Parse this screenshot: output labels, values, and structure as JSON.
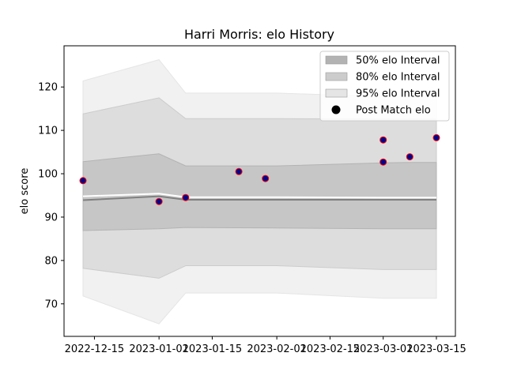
{
  "chart_data": {
    "type": "line",
    "title": "Harri Morris: elo History",
    "xlabel": "",
    "ylabel": "elo score",
    "xlim": [
      "2022-12-07",
      "2023-03-20"
    ],
    "ylim": [
      62.5,
      129.5
    ],
    "x_ticks": [
      "2022-12-15",
      "2023-01-01",
      "2023-01-15",
      "2023-02-01",
      "2023-02-15",
      "2023-03-01",
      "2023-03-15"
    ],
    "x_tick_labels": [
      "2022-12-15",
      "2023-01-01",
      "2023-01-15",
      "2023-02-01",
      "2023-02-15",
      "2023-03-01",
      "2023-03-15"
    ],
    "y_ticks": [
      70,
      80,
      90,
      100,
      110,
      120
    ],
    "y_tick_labels": [
      "70",
      "80",
      "90",
      "100",
      "110",
      "120"
    ],
    "grid": false,
    "legend_position": "top-right",
    "x": [
      "2022-12-12",
      "2023-01-01",
      "2023-01-08",
      "2023-02-01",
      "2023-03-01",
      "2023-03-08",
      "2023-03-15"
    ],
    "series": [
      {
        "name": "50% elo Interval",
        "kind": "band",
        "color": "#b3b3b3",
        "lower": [
          86.9,
          87.3,
          87.6,
          87.5,
          87.3,
          87.3,
          87.3
        ],
        "upper": [
          102.8,
          104.6,
          101.8,
          101.8,
          102.5,
          102.6,
          102.6
        ]
      },
      {
        "name": "80% elo Interval",
        "kind": "band",
        "color": "#cccccc",
        "lower": [
          78.2,
          75.9,
          78.8,
          78.8,
          77.9,
          77.9,
          77.9
        ],
        "upper": [
          113.8,
          117.5,
          112.7,
          112.7,
          112.6,
          112.6,
          112.6
        ]
      },
      {
        "name": "95% elo Interval",
        "kind": "band",
        "color": "#e5e5e5",
        "lower": [
          71.8,
          65.4,
          72.5,
          72.5,
          71.3,
          71.3,
          71.3
        ],
        "upper": [
          121.4,
          126.3,
          118.6,
          118.6,
          117.8,
          117.8,
          117.8
        ]
      },
      {
        "kind": "line",
        "color": "#808080",
        "values": [
          93.9,
          94.8,
          94.0,
          94.0,
          94.0,
          94.0,
          94.0
        ]
      },
      {
        "kind": "line",
        "color": "#ffffff",
        "values": [
          94.8,
          95.4,
          94.6,
          94.6,
          94.5,
          94.5,
          94.5
        ]
      },
      {
        "name": "Post Match elo",
        "kind": "scatter",
        "color": "#00008b",
        "edgecolor": "#ff0000",
        "points": [
          {
            "x": "2022-12-12",
            "y": 98.4
          },
          {
            "x": "2023-01-01",
            "y": 93.6
          },
          {
            "x": "2023-01-08",
            "y": 94.5
          },
          {
            "x": "2023-01-22",
            "y": 100.5
          },
          {
            "x": "2023-01-29",
            "y": 98.9
          },
          {
            "x": "2023-03-01",
            "y": 102.7
          },
          {
            "x": "2023-03-01",
            "y": 107.8
          },
          {
            "x": "2023-03-08",
            "y": 103.9
          },
          {
            "x": "2023-03-15",
            "y": 108.3
          }
        ]
      }
    ],
    "legend": [
      {
        "label": "50% elo Interval",
        "kind": "patch",
        "color": "#b3b3b3"
      },
      {
        "label": "80% elo Interval",
        "kind": "patch",
        "color": "#cccccc"
      },
      {
        "label": "95% elo Interval",
        "kind": "patch",
        "color": "#e5e5e5"
      },
      {
        "label": "Post Match elo",
        "kind": "marker",
        "color": "#000000"
      }
    ]
  }
}
